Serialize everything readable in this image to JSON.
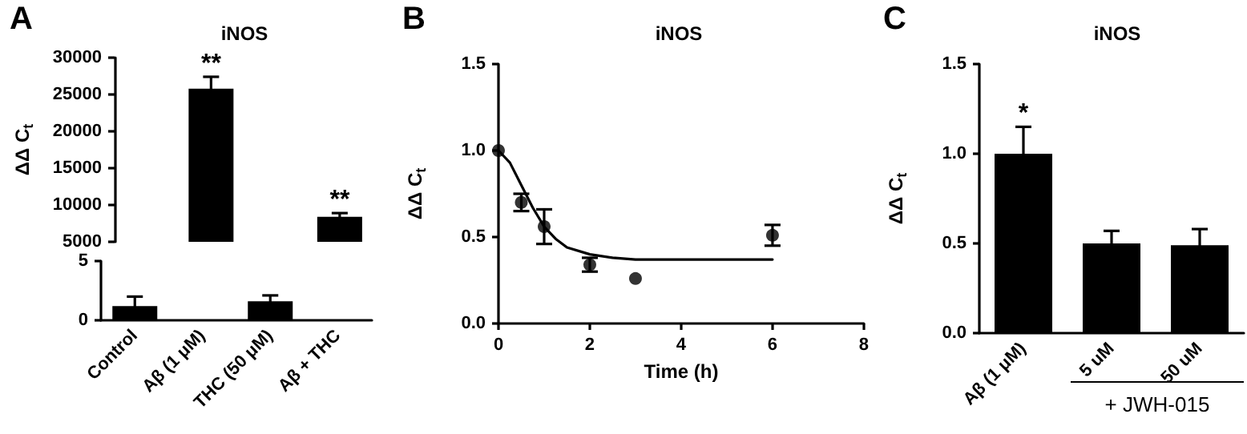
{
  "chart_data": [
    {
      "type": "bar",
      "title": "iNOS",
      "ylabel": "ΔΔ C$_{t}$",
      "annotations": [
        "A",
        {
          "text": "**",
          "x": "Aβ (1 μM)",
          "y": 27400
        },
        {
          "text": "**",
          "x": "Aβ + THC",
          "y": 8900
        }
      ],
      "categories": [
        "Control",
        "Aβ (1 μM)",
        "THC (50 μM)",
        "Aβ + THC"
      ],
      "values": [
        null,
        25800,
        null,
        8400
      ],
      "errors": [
        null,
        1600,
        null,
        500
      ],
      "color": "#000000",
      "ylim": [
        5000,
        30000
      ],
      "yticks": [
        5000,
        10000,
        15000,
        20000,
        25000,
        30000
      ],
      "tick_labels": "y"
    },
    {
      "type": "bar",
      "categories": [
        "Control",
        "Aβ (1 μM)",
        "THC (50 μM)",
        "Aβ + THC"
      ],
      "values": [
        1.2,
        null,
        1.6,
        null
      ],
      "errors": [
        0.8,
        null,
        0.5,
        null
      ],
      "color": "#000000",
      "ylim": [
        0,
        5
      ],
      "yticks": [
        0,
        5
      ]
    },
    {
      "type": "scatter",
      "title": "iNOS",
      "xlabel": "Time (h)",
      "ylabel": "ΔΔ C$_{t}$",
      "annotations": [
        "B"
      ],
      "xlim": [
        0,
        8
      ],
      "xticks": [
        0,
        2,
        4,
        6,
        8
      ],
      "ylim": [
        0,
        1.5
      ],
      "yticks": [
        {
          "value": 0,
          "label": "0.0"
        },
        {
          "value": 0.5,
          "label": "0.5"
        },
        {
          "value": 1,
          "label": "1.0"
        },
        {
          "value": 1.5,
          "label": "1.5"
        }
      ],
      "series": [
        {
          "color": "#000000",
          "marker": "circle",
          "x": [
            0,
            0.5,
            1,
            2,
            3,
            6
          ],
          "values": [
            1.0,
            0.7,
            0.56,
            0.34,
            0.26,
            0.51
          ],
          "errors": [
            null,
            0.05,
            0.1,
            0.04,
            null,
            0.06
          ]
        },
        {
          "type": "line",
          "color": "#000000",
          "marker": "none",
          "line_style": "solid",
          "x": [
            0,
            0.25,
            0.5,
            0.75,
            1,
            1.25,
            1.5,
            2,
            2.5,
            3,
            4,
            6
          ],
          "values": [
            1.0,
            0.93,
            0.8,
            0.67,
            0.56,
            0.49,
            0.44,
            0.4,
            0.38,
            0.37,
            0.37,
            0.37
          ]
        }
      ]
    },
    {
      "type": "bar",
      "title": "iNOS",
      "ylabel": "ΔΔ C$_{t}$",
      "annotations": [
        "C",
        "+ JWH-015",
        {
          "text": "*",
          "x": "Aβ (1 μM)",
          "y": 1.15
        }
      ],
      "categories": [
        "Aβ (1 μM)",
        "5 uM",
        "50 uM"
      ],
      "values": [
        1.0,
        0.5,
        0.49
      ],
      "errors": [
        0.15,
        0.07,
        0.09
      ],
      "color": "#000000",
      "ylim": [
        0,
        1.5
      ],
      "yticks": [
        {
          "value": 0,
          "label": "0.0"
        },
        {
          "value": 0.5,
          "label": "0.5"
        },
        {
          "value": 1,
          "label": "1.0"
        },
        {
          "value": 1.5,
          "label": "1.5"
        }
      ]
    }
  ]
}
